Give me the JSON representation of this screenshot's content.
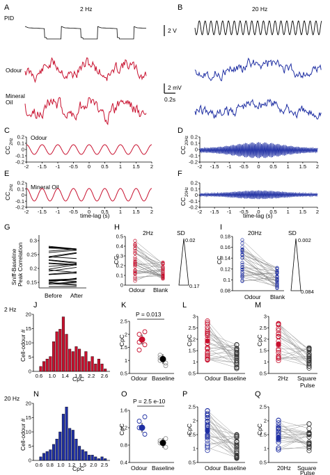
{
  "colors": {
    "odour_red": "#c8102e",
    "blue": "#1f2fa3",
    "grey": "#9a9a9a",
    "black": "#000000"
  },
  "panels": {
    "A": {
      "letter": "A",
      "title": "2 Hz",
      "pid": "PID",
      "odour": "Odour",
      "mineral": "Mineral",
      "oil": "Oil"
    },
    "B": {
      "letter": "B",
      "title": "20 Hz",
      "scale_v": "2 V",
      "scale_mv": "2 mV",
      "scale_s": "0.2s"
    },
    "C": {
      "letter": "C",
      "inner": "Odour",
      "ylabel": "CC",
      "ysub": "2Hz"
    },
    "D": {
      "letter": "D",
      "ylabel": "CC",
      "ysub": "20Hz"
    },
    "E": {
      "letter": "E",
      "inner": "Mineral Oil",
      "ylabel": "CC",
      "ysub": "2Hz"
    },
    "F": {
      "letter": "F",
      "ylabel": "CC",
      "ysub": "20Hz"
    },
    "G": {
      "letter": "G",
      "ylabel1": "Sniff-Baseline",
      "ylabel2": "Peak Correlation",
      "x1": "Before",
      "x2": "After"
    },
    "H": {
      "letter": "H",
      "inner": "2Hz",
      "ylabel": "CC",
      "x1": "Odour",
      "x2": "Blank",
      "sd": "SD",
      "sd_top": "0.02",
      "sd_bot": "0.17"
    },
    "I": {
      "letter": "I",
      "inner": "20Hz",
      "ylabel": "CC",
      "x1": "Odour",
      "x2": "Blank",
      "sd": "SD",
      "sd_top": "0.002",
      "sd_bot": "0.084"
    },
    "J": {
      "letter": "J",
      "row": "2 Hz",
      "ylabel": "Cell-odour #",
      "xlabel": "CpC"
    },
    "K": {
      "letter": "K",
      "ptext": "P = 0.013",
      "ylabel": "CpC",
      "x1": "Odour",
      "x2": "Baseline"
    },
    "L": {
      "letter": "L",
      "ylabel": "CpC",
      "x1": "Odour",
      "x2": "Baseline"
    },
    "M": {
      "letter": "M",
      "ylabel": "CpC",
      "x1": "2Hz",
      "x2a": "Square",
      "x2b": "Pulse"
    },
    "N": {
      "letter": "N",
      "row": "20 Hz",
      "ylabel": "Cell-odour #",
      "xlabel": "CpC"
    },
    "O": {
      "letter": "O",
      "ptext": "P = 2.5 e-10",
      "ylabel": "CpC",
      "x1": "Odour",
      "x2": "Baseline"
    },
    "P": {
      "letter": "P",
      "ylabel": "CpC",
      "x1": "Odour",
      "x2": "Baseline"
    },
    "Q": {
      "letter": "Q",
      "ylabel": "CpC",
      "x1": "20Hz",
      "x2a": "Square",
      "x2b": "Pulse"
    }
  },
  "axes": {
    "cc_x_ticks": [
      "-2",
      "-1.5",
      "-1",
      "-0.5",
      "0",
      "0.5",
      "1",
      "1.5",
      "2"
    ],
    "timelag_label": "time-lag (s)",
    "cd_y_ticks": [
      "0.2",
      "0.1",
      "0",
      "-0.1",
      "-0.2"
    ],
    "ef_y_ticks": [
      "0.2",
      "0.1",
      "0",
      "-0.1",
      "-0.2"
    ],
    "g_y_ticks": [
      "0.3",
      "0.25",
      "0.2",
      "0.15"
    ],
    "h_y_ticks": [
      "0.5",
      "0.4",
      "0.3",
      "0.2",
      "0.1",
      "0"
    ],
    "i_y_ticks": [
      "0.18",
      "0.16",
      "0.14",
      "0.12",
      "0.1",
      "0.08"
    ],
    "hist_x_ticks": [
      "0.6",
      "1.0",
      "1.4",
      "1.8",
      "2.2",
      "2.6"
    ],
    "hist_y_ticks": [
      "20",
      "15",
      "10",
      "5",
      "0"
    ],
    "hist2_x_ticks": [
      "0.6",
      "0.8",
      "1.0",
      "1.2",
      "1.5",
      "2.0",
      "2.5"
    ],
    "k_y_ticks": [
      "2.5",
      "2",
      "1.5",
      "1",
      "0.5"
    ],
    "o_y_ticks": [
      "1.6",
      "1.2",
      "0.8",
      "0.4"
    ],
    "lm_y_ticks": [
      "3",
      "2.5",
      "2",
      "1.5",
      "1",
      "0.5"
    ],
    "pq_y_ticks": [
      "2.5",
      "2",
      "1.5",
      "1",
      "0.5"
    ]
  },
  "chart_data": [
    {
      "type": "bar",
      "panel": "J",
      "x": [
        0.6,
        0.7,
        0.8,
        0.9,
        1.0,
        1.1,
        1.2,
        1.3,
        1.4,
        1.5,
        1.6,
        1.7,
        1.8,
        1.9,
        2.0,
        2.1,
        2.2,
        2.3,
        2.4,
        2.5,
        2.6,
        2.7
      ],
      "values": [
        0,
        2,
        4,
        5,
        6,
        12,
        16,
        17,
        22,
        15,
        9,
        8,
        10,
        9,
        6,
        8,
        4,
        6,
        3,
        5,
        3,
        1
      ],
      "xlabel": "CpC",
      "ylabel": "Cell-odour #",
      "ylim": [
        0,
        23
      ]
    },
    {
      "type": "bar",
      "panel": "N",
      "x": [
        0.55,
        0.6,
        0.65,
        0.7,
        0.75,
        0.8,
        0.85,
        0.9,
        0.95,
        1.0,
        1.05,
        1.1,
        1.15,
        1.2,
        1.25,
        1.3,
        1.4,
        1.5,
        1.6,
        1.7,
        1.8,
        2.0
      ],
      "values": [
        0,
        2,
        4,
        5,
        6,
        9,
        12,
        16,
        26,
        30,
        18,
        17,
        12,
        8,
        6,
        5,
        3,
        3,
        2,
        1,
        2,
        1
      ],
      "xlabel": "CpC",
      "ylabel": "Cell-odour #",
      "ylim": [
        0,
        32
      ]
    },
    {
      "type": "scatter",
      "panel": "K",
      "categories": [
        "Odour",
        "Baseline"
      ],
      "means": [
        1.8,
        1.05
      ],
      "points": [
        [
          2.0,
          1.6,
          1.7,
          2.1,
          1.4
        ],
        [
          1.1,
          0.9,
          1.2,
          0.8,
          1.0
        ]
      ]
    },
    {
      "type": "scatter",
      "panel": "O",
      "categories": [
        "Odour",
        "Baseline"
      ],
      "means": [
        1.2,
        0.85
      ],
      "points": [
        [
          1.35,
          1.05,
          1.2,
          1.45
        ],
        [
          0.9,
          0.75,
          0.85,
          0.95
        ]
      ]
    }
  ]
}
